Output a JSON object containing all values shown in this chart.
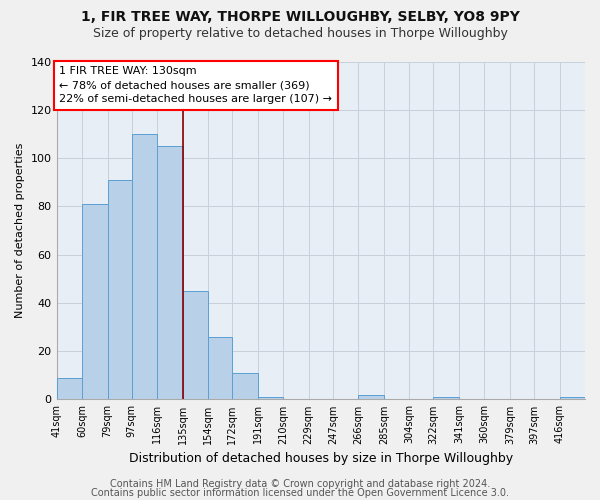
{
  "title": "1, FIR TREE WAY, THORPE WILLOUGHBY, SELBY, YO8 9PY",
  "subtitle": "Size of property relative to detached houses in Thorpe Willoughby",
  "xlabel": "Distribution of detached houses by size in Thorpe Willoughby",
  "ylabel": "Number of detached properties",
  "bar_labels": [
    "41sqm",
    "60sqm",
    "79sqm",
    "97sqm",
    "116sqm",
    "135sqm",
    "154sqm",
    "172sqm",
    "191sqm",
    "210sqm",
    "229sqm",
    "247sqm",
    "266sqm",
    "285sqm",
    "304sqm",
    "322sqm",
    "341sqm",
    "360sqm",
    "379sqm",
    "397sqm",
    "416sqm"
  ],
  "bar_values": [
    9,
    81,
    91,
    110,
    105,
    45,
    26,
    11,
    1,
    0,
    0,
    0,
    2,
    0,
    0,
    1,
    0,
    0,
    0,
    0,
    1
  ],
  "bar_color": "#b8d0e8",
  "bar_edge_color": "#5a9fd4",
  "ylim": [
    0,
    140
  ],
  "yticks": [
    0,
    20,
    40,
    60,
    80,
    100,
    120,
    140
  ],
  "red_line_x": 135,
  "bin_edges": [
    41,
    60,
    79,
    97,
    116,
    135,
    154,
    172,
    191,
    210,
    229,
    247,
    266,
    285,
    304,
    322,
    341,
    360,
    379,
    397,
    416,
    435
  ],
  "annotation_box_text": "1 FIR TREE WAY: 130sqm\n← 78% of detached houses are smaller (369)\n22% of semi-detached houses are larger (107) →",
  "footnote1": "Contains HM Land Registry data © Crown copyright and database right 2024.",
  "footnote2": "Contains public sector information licensed under the Open Government Licence 3.0.",
  "background_color": "#f0f0f0",
  "plot_bg_color": "#e8eef5",
  "grid_color": "#c8d0dc",
  "title_fontsize": 10,
  "subtitle_fontsize": 9,
  "xlabel_fontsize": 9,
  "ylabel_fontsize": 8,
  "annotation_fontsize": 8,
  "footnote_fontsize": 7
}
